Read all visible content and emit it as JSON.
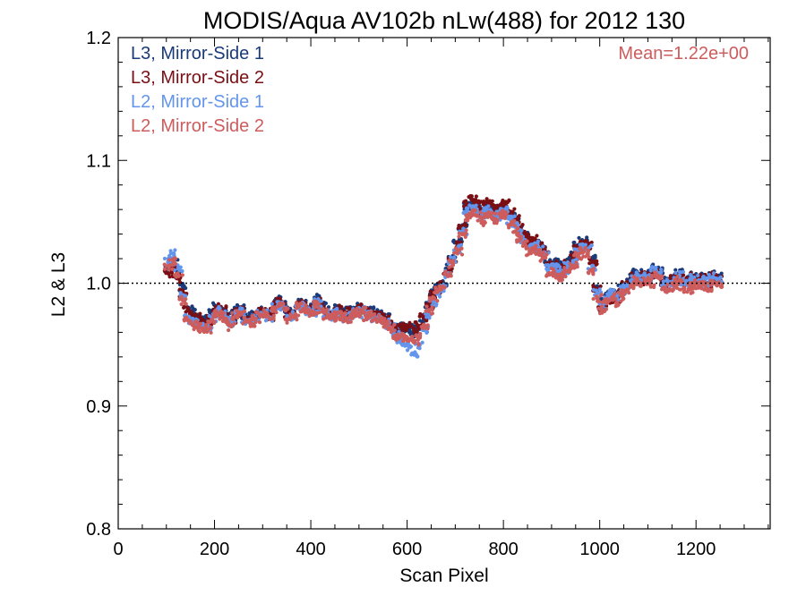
{
  "chart_data": {
    "type": "scatter",
    "title": "MODIS/Aqua AV102b nLw(488) for 2012 130",
    "xlabel": "Scan Pixel",
    "ylabel": "L2 & L3",
    "xlim": [
      0,
      1354
    ],
    "ylim": [
      0.8,
      1.2
    ],
    "xticks": [
      0,
      200,
      400,
      600,
      800,
      1000,
      1200
    ],
    "yticks": [
      0.8,
      0.9,
      1.0,
      1.1,
      1.2
    ],
    "xtick_labels": [
      "0",
      "200",
      "400",
      "600",
      "800",
      "1000",
      "1200"
    ],
    "ytick_labels": [
      "0.8",
      "0.9",
      "1.0",
      "1.1",
      "1.2"
    ],
    "reference_line": {
      "y": 1.0,
      "style": "dotted"
    },
    "annotation": {
      "text": "Mean=1.22e+00",
      "color": "#cd5c5c"
    },
    "legend_position": "top-left",
    "series": [
      {
        "name": "L3, Mirror-Side 1",
        "color": "#1a3a7a",
        "x": [
          105,
          115,
          125,
          135,
          145,
          155,
          165,
          175,
          185,
          195,
          205,
          215,
          225,
          235,
          245,
          255,
          265,
          275,
          285,
          295,
          305,
          315,
          325,
          335,
          345,
          355,
          365,
          375,
          385,
          395,
          405,
          415,
          425,
          435,
          445,
          455,
          465,
          475,
          485,
          495,
          505,
          515,
          525,
          535,
          545,
          555,
          565,
          575,
          585,
          595,
          605,
          615,
          625,
          635,
          645,
          655,
          665,
          675,
          685,
          695,
          705,
          715,
          725,
          735,
          745,
          755,
          765,
          775,
          785,
          795,
          805,
          815,
          825,
          835,
          845,
          855,
          865,
          875,
          885,
          895,
          905,
          915,
          925,
          935,
          945,
          955,
          965,
          975,
          985,
          995,
          1005,
          1015,
          1025,
          1035,
          1045,
          1055,
          1065,
          1075,
          1085,
          1095,
          1105,
          1115,
          1125,
          1135,
          1145,
          1155,
          1165,
          1175,
          1185,
          1195,
          1205,
          1215,
          1225,
          1235,
          1245
        ],
        "y": [
          1.012,
          1.017,
          1.008,
          0.997,
          0.98,
          0.976,
          0.974,
          0.972,
          0.969,
          0.975,
          0.981,
          0.979,
          0.975,
          0.97,
          0.977,
          0.98,
          0.973,
          0.971,
          0.975,
          0.977,
          0.978,
          0.974,
          0.983,
          0.986,
          0.982,
          0.975,
          0.977,
          0.985,
          0.983,
          0.98,
          0.979,
          0.988,
          0.981,
          0.978,
          0.976,
          0.98,
          0.977,
          0.974,
          0.978,
          0.98,
          0.981,
          0.977,
          0.978,
          0.975,
          0.974,
          0.972,
          0.968,
          0.962,
          0.965,
          0.962,
          0.963,
          0.957,
          0.963,
          0.972,
          0.983,
          0.992,
          0.997,
          1.0,
          1.012,
          1.022,
          1.033,
          1.047,
          1.062,
          1.066,
          1.061,
          1.058,
          1.063,
          1.061,
          1.057,
          1.061,
          1.062,
          1.055,
          1.05,
          1.043,
          1.038,
          1.033,
          1.035,
          1.03,
          1.027,
          1.015,
          1.017,
          1.012,
          1.015,
          1.018,
          1.022,
          1.03,
          1.034,
          1.032,
          1.02,
          0.997,
          0.985,
          0.99,
          0.993,
          0.99,
          0.996,
          1.0,
          1.004,
          1.008,
          1.004,
          1.008,
          1.007,
          1.012,
          1.01,
          1.002,
          1.001,
          1.004,
          1.008,
          1.002,
          1.001,
          1.006,
          1.004,
          1.005,
          1.0,
          1.007,
          1.005
        ]
      },
      {
        "name": "L3, Mirror-Side 2",
        "color": "#7a0f14",
        "x": [
          105,
          115,
          125,
          135,
          145,
          155,
          165,
          175,
          185,
          195,
          205,
          215,
          225,
          235,
          245,
          255,
          265,
          275,
          285,
          295,
          305,
          315,
          325,
          335,
          345,
          355,
          365,
          375,
          385,
          395,
          405,
          415,
          425,
          435,
          445,
          455,
          465,
          475,
          485,
          495,
          505,
          515,
          525,
          535,
          545,
          555,
          565,
          575,
          585,
          595,
          605,
          615,
          625,
          635,
          645,
          655,
          665,
          675,
          685,
          695,
          705,
          715,
          725,
          735,
          745,
          755,
          765,
          775,
          785,
          795,
          805,
          815,
          825,
          835,
          845,
          855,
          865,
          875,
          885,
          895,
          905,
          915,
          925,
          935,
          945,
          955,
          965,
          975,
          985,
          995,
          1005,
          1015,
          1025,
          1035,
          1045,
          1055,
          1065,
          1075,
          1085,
          1095,
          1105,
          1115,
          1125,
          1135,
          1145,
          1155,
          1165,
          1175,
          1185,
          1195,
          1205,
          1215,
          1225,
          1235,
          1245
        ],
        "y": [
          1.008,
          1.014,
          1.004,
          0.992,
          0.978,
          0.974,
          0.972,
          0.97,
          0.967,
          0.973,
          0.98,
          0.978,
          0.973,
          0.969,
          0.976,
          0.978,
          0.972,
          0.97,
          0.974,
          0.976,
          0.977,
          0.973,
          0.982,
          0.985,
          0.981,
          0.974,
          0.976,
          0.984,
          0.982,
          0.979,
          0.978,
          0.986,
          0.98,
          0.977,
          0.975,
          0.979,
          0.976,
          0.973,
          0.977,
          0.979,
          0.98,
          0.976,
          0.977,
          0.974,
          0.973,
          0.971,
          0.967,
          0.963,
          0.966,
          0.963,
          0.965,
          0.962,
          0.965,
          0.972,
          0.982,
          0.99,
          0.995,
          0.998,
          1.01,
          1.02,
          1.032,
          1.046,
          1.064,
          1.068,
          1.065,
          1.06,
          1.066,
          1.064,
          1.06,
          1.064,
          1.066,
          1.058,
          1.052,
          1.045,
          1.04,
          1.034,
          1.036,
          1.031,
          1.028,
          1.014,
          1.015,
          1.01,
          1.012,
          1.016,
          1.02,
          1.028,
          1.033,
          1.03,
          1.017,
          0.995,
          0.98,
          0.986,
          0.99,
          0.987,
          0.994,
          0.998,
          1.002,
          1.006,
          1.002,
          1.007,
          1.005,
          1.01,
          1.008,
          1.0,
          1.0,
          1.003,
          1.007,
          1.001,
          1.0,
          1.005,
          1.003,
          1.004,
          0.999,
          1.006,
          1.004
        ]
      },
      {
        "name": "L2, Mirror-Side 1",
        "color": "#6495ed",
        "x": [
          105,
          115,
          125,
          135,
          145,
          155,
          165,
          175,
          185,
          195,
          205,
          215,
          225,
          235,
          245,
          255,
          265,
          275,
          285,
          295,
          305,
          315,
          325,
          335,
          345,
          355,
          365,
          375,
          385,
          395,
          405,
          415,
          425,
          435,
          445,
          455,
          465,
          475,
          485,
          495,
          505,
          515,
          525,
          535,
          545,
          555,
          565,
          575,
          585,
          595,
          605,
          615,
          625,
          635,
          645,
          655,
          665,
          675,
          685,
          695,
          705,
          715,
          725,
          735,
          745,
          755,
          765,
          775,
          785,
          795,
          805,
          815,
          825,
          835,
          845,
          855,
          865,
          875,
          885,
          895,
          905,
          915,
          925,
          935,
          945,
          955,
          965,
          975,
          985,
          995,
          1005,
          1015,
          1025,
          1035,
          1045,
          1055,
          1065,
          1075,
          1085,
          1095,
          1105,
          1115,
          1125,
          1135,
          1145,
          1155,
          1165,
          1175,
          1185,
          1195,
          1205,
          1215,
          1225,
          1235,
          1245
        ],
        "y": [
          1.02,
          1.024,
          1.012,
          0.99,
          0.972,
          0.968,
          0.967,
          0.965,
          0.964,
          0.972,
          0.978,
          0.976,
          0.972,
          0.966,
          0.975,
          0.977,
          0.97,
          0.968,
          0.972,
          0.975,
          0.976,
          0.972,
          0.98,
          0.983,
          0.98,
          0.972,
          0.974,
          0.982,
          0.98,
          0.977,
          0.976,
          0.984,
          0.978,
          0.975,
          0.973,
          0.977,
          0.974,
          0.971,
          0.975,
          0.977,
          0.978,
          0.974,
          0.975,
          0.972,
          0.97,
          0.968,
          0.964,
          0.958,
          0.955,
          0.95,
          0.948,
          0.942,
          0.95,
          0.962,
          0.975,
          0.985,
          0.992,
          0.996,
          1.008,
          1.018,
          1.028,
          1.042,
          1.058,
          1.062,
          1.058,
          1.054,
          1.06,
          1.058,
          1.054,
          1.058,
          1.06,
          1.052,
          1.046,
          1.04,
          1.035,
          1.03,
          1.032,
          1.028,
          1.025,
          1.012,
          1.013,
          1.008,
          1.01,
          1.014,
          1.018,
          1.026,
          1.03,
          1.028,
          1.014,
          0.992,
          0.982,
          0.988,
          0.992,
          0.988,
          0.994,
          0.998,
          1.002,
          1.006,
          1.002,
          1.006,
          1.004,
          1.01,
          1.008,
          1.0,
          0.999,
          1.002,
          1.006,
          1.0,
          0.999,
          1.004,
          1.002,
          1.003,
          0.998,
          1.005,
          1.003
        ]
      },
      {
        "name": "L2, Mirror-Side 2",
        "color": "#cd5c5c",
        "x": [
          105,
          115,
          125,
          135,
          145,
          155,
          165,
          175,
          185,
          195,
          205,
          215,
          225,
          235,
          245,
          255,
          265,
          275,
          285,
          295,
          305,
          315,
          325,
          335,
          345,
          355,
          365,
          375,
          385,
          395,
          405,
          415,
          425,
          435,
          445,
          455,
          465,
          475,
          485,
          495,
          505,
          515,
          525,
          535,
          545,
          555,
          565,
          575,
          585,
          595,
          605,
          615,
          625,
          635,
          645,
          655,
          665,
          675,
          685,
          695,
          705,
          715,
          725,
          735,
          745,
          755,
          765,
          775,
          785,
          795,
          805,
          815,
          825,
          835,
          845,
          855,
          865,
          875,
          885,
          895,
          905,
          915,
          925,
          935,
          945,
          955,
          965,
          975,
          985,
          995,
          1005,
          1015,
          1025,
          1035,
          1045,
          1055,
          1065,
          1075,
          1085,
          1095,
          1105,
          1115,
          1125,
          1135,
          1145,
          1155,
          1165,
          1175,
          1185,
          1195,
          1205,
          1215,
          1225,
          1235,
          1245
        ],
        "y": [
          1.014,
          1.018,
          1.006,
          0.986,
          0.97,
          0.966,
          0.964,
          0.963,
          0.962,
          0.97,
          0.976,
          0.974,
          0.97,
          0.965,
          0.973,
          0.975,
          0.969,
          0.967,
          0.971,
          0.974,
          0.975,
          0.971,
          0.979,
          0.982,
          0.979,
          0.971,
          0.973,
          0.981,
          0.979,
          0.976,
          0.975,
          0.983,
          0.977,
          0.974,
          0.972,
          0.976,
          0.973,
          0.97,
          0.974,
          0.976,
          0.977,
          0.973,
          0.974,
          0.971,
          0.969,
          0.967,
          0.963,
          0.957,
          0.956,
          0.955,
          0.954,
          0.952,
          0.956,
          0.966,
          0.978,
          0.988,
          0.994,
          0.997,
          1.006,
          1.016,
          1.026,
          1.04,
          1.054,
          1.058,
          1.055,
          1.05,
          1.056,
          1.054,
          1.05,
          1.054,
          1.056,
          1.048,
          1.042,
          1.036,
          1.031,
          1.026,
          1.028,
          1.024,
          1.021,
          1.008,
          1.009,
          1.004,
          1.006,
          1.01,
          1.014,
          1.022,
          1.026,
          1.024,
          1.01,
          0.988,
          0.978,
          0.984,
          0.988,
          0.984,
          0.99,
          0.994,
          0.998,
          1.002,
          0.998,
          1.002,
          1.0,
          1.006,
          1.004,
          0.996,
          0.995,
          0.998,
          1.002,
          0.996,
          0.995,
          1.0,
          0.998,
          0.999,
          0.994,
          1.001,
          0.999
        ]
      }
    ]
  }
}
